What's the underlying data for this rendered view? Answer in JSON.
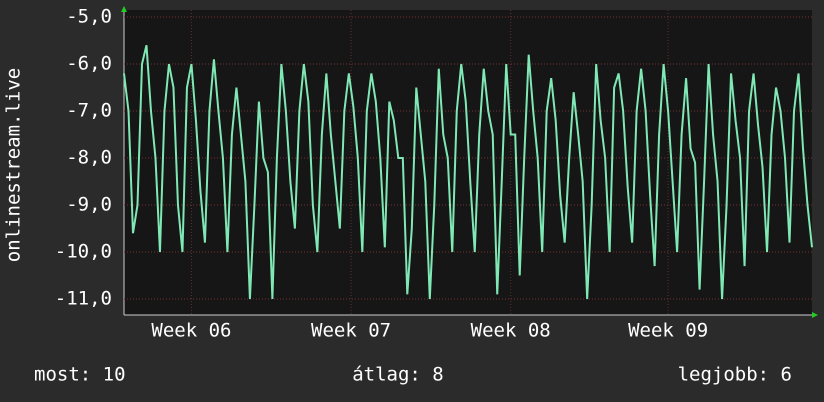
{
  "chart_data": {
    "type": "line",
    "y_label": "onlinestream.live",
    "ylim": [
      -11.34,
      -4.85
    ],
    "yticks": [
      {
        "value": -5,
        "label": "-5,0"
      },
      {
        "value": -6,
        "label": "-6,0"
      },
      {
        "value": -7,
        "label": "-7,0"
      },
      {
        "value": -8,
        "label": "-8,0"
      },
      {
        "value": -9,
        "label": "-9,0"
      },
      {
        "value": -10,
        "label": "-10,0"
      },
      {
        "value": -11,
        "label": "-11,0"
      }
    ],
    "xlim": [
      0,
      153
    ],
    "xticks": [
      {
        "value": 15,
        "label": "Week 06"
      },
      {
        "value": 50.5,
        "label": "Week 07"
      },
      {
        "value": 86,
        "label": "Week 08"
      },
      {
        "value": 121,
        "label": "Week 09"
      }
    ],
    "grid": true,
    "series": [
      {
        "color": "#7fe8b4",
        "values": [
          -6.2,
          -7.0,
          -9.6,
          -9.0,
          -6.0,
          -5.6,
          -7.0,
          -8.0,
          -10.0,
          -7.0,
          -6.0,
          -6.5,
          -9.0,
          -10.0,
          -6.5,
          -6.0,
          -7.2,
          -8.7,
          -9.8,
          -7.0,
          -5.9,
          -7.0,
          -8.0,
          -10.0,
          -7.5,
          -6.5,
          -7.5,
          -8.5,
          -11.0,
          -9.0,
          -6.8,
          -8.0,
          -8.3,
          -11.0,
          -8.0,
          -6.0,
          -7.0,
          -8.5,
          -9.5,
          -7.0,
          -6.0,
          -6.8,
          -9.0,
          -10.0,
          -7.5,
          -6.2,
          -7.5,
          -8.5,
          -9.5,
          -7.0,
          -6.2,
          -6.9,
          -8.0,
          -10.0,
          -7.0,
          -6.2,
          -6.8,
          -8.0,
          -9.9,
          -6.8,
          -7.2,
          -8.0,
          -8.0,
          -10.9,
          -9.5,
          -6.5,
          -7.5,
          -8.5,
          -11.0,
          -9.0,
          -6.1,
          -7.5,
          -8.0,
          -10.0,
          -7.0,
          -6.0,
          -6.8,
          -8.5,
          -10.0,
          -7.5,
          -6.1,
          -7.0,
          -7.5,
          -10.9,
          -8.5,
          -6.0,
          -7.5,
          -7.5,
          -10.5,
          -8.0,
          -5.8,
          -7.0,
          -8.0,
          -10.0,
          -7.0,
          -6.3,
          -7.2,
          -8.8,
          -9.8,
          -8.0,
          -6.6,
          -7.5,
          -8.5,
          -11.0,
          -9.0,
          -6.0,
          -7.2,
          -8.0,
          -10.0,
          -6.5,
          -6.2,
          -7.0,
          -8.6,
          -9.8,
          -7.0,
          -6.1,
          -7.0,
          -8.8,
          -10.3,
          -7.5,
          -6.0,
          -7.0,
          -8.5,
          -10.0,
          -7.5,
          -6.3,
          -7.8,
          -8.1,
          -10.8,
          -8.5,
          -6.0,
          -7.5,
          -8.5,
          -11.0,
          -9.0,
          -6.2,
          -7.2,
          -8.0,
          -10.3,
          -7.0,
          -6.2,
          -7.3,
          -8.2,
          -10.0,
          -7.5,
          -6.5,
          -7.0,
          -8.0,
          -9.8,
          -7.0,
          -6.2,
          -7.8,
          -9.0,
          -9.9
        ]
      }
    ],
    "legend": {
      "now": "most: 10",
      "average": "átlag: 8",
      "best": "legjobb: 6"
    }
  }
}
